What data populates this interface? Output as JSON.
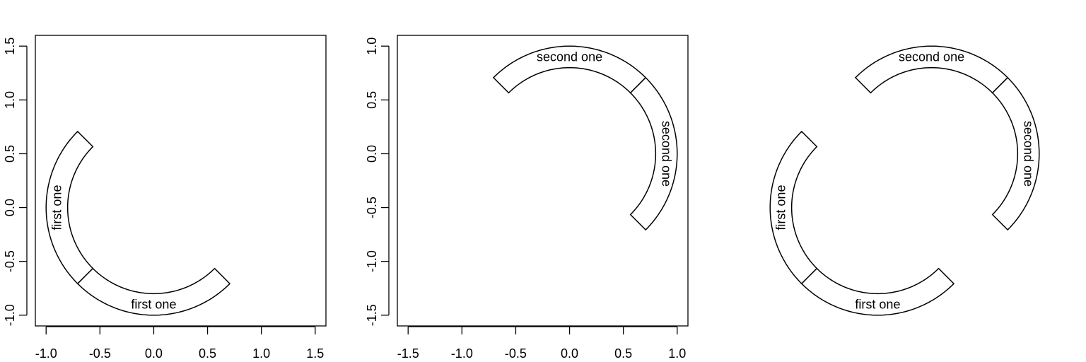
{
  "chart_data": [
    {
      "type": "other",
      "xlim": [
        -1.0,
        1.5
      ],
      "ylim": [
        -1.0,
        1.5
      ],
      "xticks": [
        "-1.0",
        "-0.5",
        "0.0",
        "0.5",
        "1.0",
        "1.5"
      ],
      "yticks": [
        "-1.0",
        "-0.5",
        "0.0",
        "0.5",
        "1.0",
        "1.5"
      ],
      "grid": false,
      "sectors": [
        {
          "label": "first one",
          "start_deg": 135,
          "end_deg": 225,
          "inner_r": 0.8,
          "outer_r": 1.0
        },
        {
          "label": "first one",
          "start_deg": 225,
          "end_deg": 315,
          "inner_r": 0.8,
          "outer_r": 1.0
        }
      ]
    },
    {
      "type": "other",
      "xlim": [
        -1.5,
        1.0
      ],
      "ylim": [
        -1.5,
        1.0
      ],
      "xticks": [
        "-1.5",
        "-1.0",
        "-0.5",
        "0.0",
        "0.5",
        "1.0"
      ],
      "yticks": [
        "-1.5",
        "-1.0",
        "-0.5",
        "0.0",
        "0.5",
        "1.0"
      ],
      "grid": false,
      "sectors": [
        {
          "label": "second one",
          "start_deg": 45,
          "end_deg": 135,
          "inner_r": 0.8,
          "outer_r": 1.0
        },
        {
          "label": "second one",
          "start_deg": -45,
          "end_deg": 45,
          "inner_r": 0.8,
          "outer_r": 1.0
        }
      ]
    },
    {
      "type": "other",
      "axes": false,
      "sectors": [
        {
          "label": "first one",
          "start_deg": 135,
          "end_deg": 225,
          "inner_r": 0.8,
          "outer_r": 1.0,
          "offset": [
            -0.5,
            -0.5
          ]
        },
        {
          "label": "first one",
          "start_deg": 225,
          "end_deg": 315,
          "inner_r": 0.8,
          "outer_r": 1.0,
          "offset": [
            -0.5,
            -0.5
          ]
        },
        {
          "label": "second one",
          "start_deg": 45,
          "end_deg": 135,
          "inner_r": 0.8,
          "outer_r": 1.0,
          "offset": [
            0.0,
            0.0
          ]
        },
        {
          "label": "second one",
          "start_deg": -45,
          "end_deg": 45,
          "inner_r": 0.8,
          "outer_r": 1.0,
          "offset": [
            0.0,
            0.0
          ]
        }
      ]
    }
  ]
}
